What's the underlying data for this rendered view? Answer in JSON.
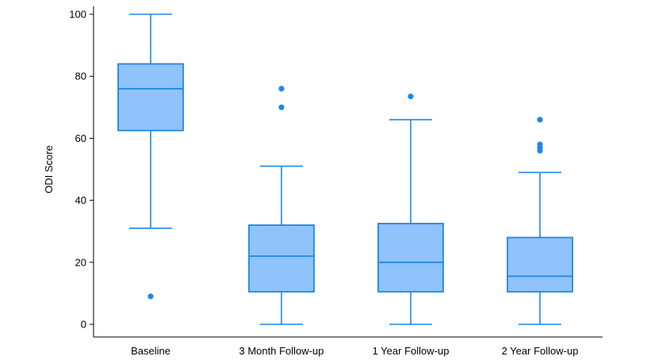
{
  "chart_data": {
    "type": "box",
    "title": "",
    "xlabel": "",
    "ylabel": "ODI Score",
    "ylim": [
      0,
      100
    ],
    "yticks": [
      0,
      20,
      40,
      60,
      80,
      100
    ],
    "grid": false,
    "colors": {
      "fill": "#90c2fb",
      "stroke": "#1e88e5",
      "outlier": "#1e88e5",
      "axis": "#000000"
    },
    "categories": [
      "Baseline",
      "3 Month Follow-up",
      "1 Year Follow-up",
      "2 Year Follow-up"
    ],
    "boxes": [
      {
        "min": 31,
        "q1": 62.5,
        "median": 76,
        "q3": 84,
        "max": 100,
        "outliers": [
          9
        ]
      },
      {
        "min": 0,
        "q1": 10.5,
        "median": 22,
        "q3": 32,
        "max": 51,
        "outliers": [
          70,
          76
        ]
      },
      {
        "min": 0,
        "q1": 10.5,
        "median": 20,
        "q3": 32.5,
        "max": 66,
        "outliers": [
          73.5
        ]
      },
      {
        "min": 0,
        "q1": 10.5,
        "median": 15.5,
        "q3": 28,
        "max": 49,
        "outliers": [
          56,
          57,
          58,
          66
        ]
      }
    ]
  }
}
